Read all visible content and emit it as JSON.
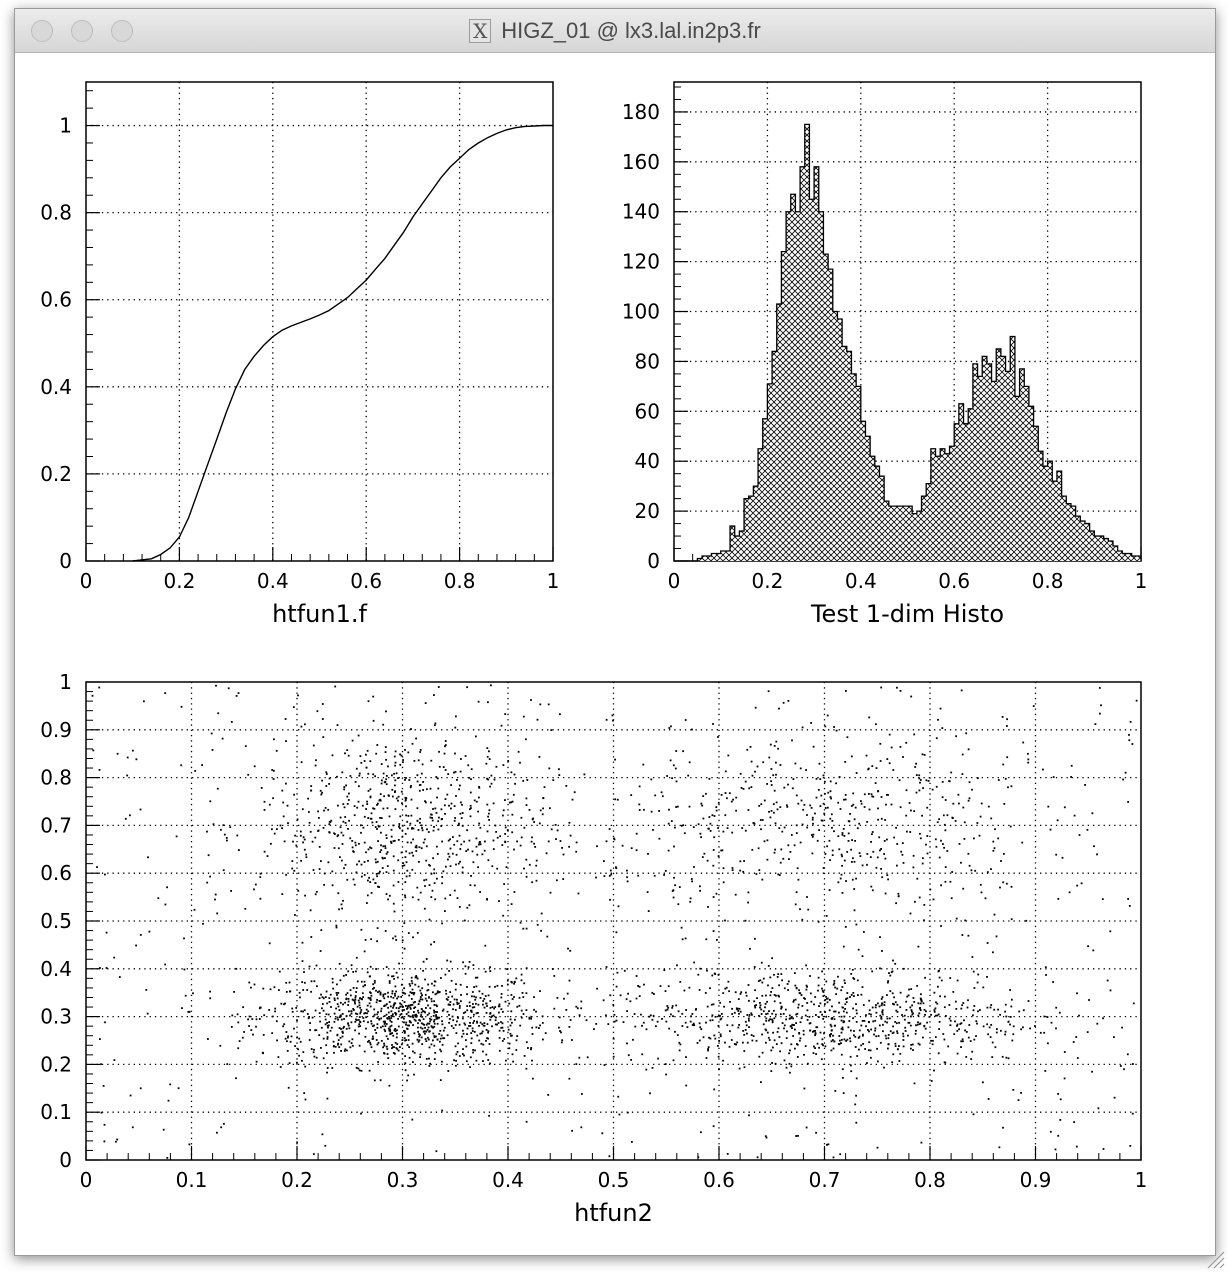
{
  "window": {
    "title": "HIGZ_01 @ lx3.lal.in2p3.fr",
    "icon": "x11-icon",
    "buttons": [
      "close-button",
      "minimize-button",
      "zoom-button"
    ]
  },
  "chart_data": [
    {
      "type": "line",
      "xlabel": "htfun1.f",
      "ylabel": "",
      "xlim": [
        0,
        1
      ],
      "ylim": [
        0,
        1.1
      ],
      "xticks": [
        "0",
        "0.2",
        "0.4",
        "0.6",
        "0.8",
        "1"
      ],
      "yticks": [
        "0",
        "0.2",
        "0.4",
        "0.6",
        "0.8",
        "1"
      ],
      "grid": true,
      "x": [
        0.1,
        0.14,
        0.16,
        0.18,
        0.2,
        0.22,
        0.24,
        0.26,
        0.28,
        0.3,
        0.32,
        0.34,
        0.36,
        0.38,
        0.4,
        0.42,
        0.44,
        0.46,
        0.48,
        0.5,
        0.52,
        0.54,
        0.56,
        0.58,
        0.6,
        0.62,
        0.64,
        0.66,
        0.68,
        0.7,
        0.72,
        0.74,
        0.76,
        0.78,
        0.8,
        0.82,
        0.84,
        0.86,
        0.88,
        0.9,
        0.92,
        0.94,
        0.96,
        0.98,
        1.0
      ],
      "y": [
        0.0,
        0.005,
        0.015,
        0.03,
        0.055,
        0.1,
        0.16,
        0.22,
        0.28,
        0.34,
        0.395,
        0.44,
        0.47,
        0.495,
        0.515,
        0.53,
        0.54,
        0.548,
        0.556,
        0.565,
        0.575,
        0.59,
        0.605,
        0.625,
        0.645,
        0.67,
        0.695,
        0.725,
        0.755,
        0.79,
        0.82,
        0.85,
        0.88,
        0.905,
        0.925,
        0.945,
        0.96,
        0.972,
        0.982,
        0.99,
        0.995,
        0.998,
        0.999,
        1.0,
        1.0
      ]
    },
    {
      "type": "bar",
      "xlabel": "Test 1-dim Histo",
      "ylabel": "",
      "xlim": [
        0,
        1
      ],
      "ylim": [
        0,
        192
      ],
      "xticks": [
        "0",
        "0.2",
        "0.4",
        "0.6",
        "0.8",
        "1"
      ],
      "yticks": [
        "0",
        "20",
        "40",
        "60",
        "80",
        "100",
        "120",
        "140",
        "160",
        "180"
      ],
      "grid": true,
      "fill": "cross-hatch",
      "bin_width": 0.01,
      "bin_start": 0,
      "values": [
        0,
        0,
        0,
        0,
        0,
        1,
        2,
        2,
        3,
        3,
        4,
        4,
        14,
        10,
        12,
        25,
        26,
        30,
        45,
        57,
        71,
        84,
        103,
        124,
        140,
        147,
        140,
        158,
        175,
        145,
        158,
        140,
        123,
        117,
        100,
        97,
        86,
        84,
        75,
        70,
        56,
        50,
        42,
        38,
        34,
        24,
        22,
        22,
        22,
        22,
        22,
        19,
        20,
        26,
        31,
        45,
        42,
        45,
        43,
        46,
        55,
        63,
        55,
        61,
        79,
        74,
        82,
        79,
        72,
        85,
        82,
        76,
        90,
        66,
        77,
        70,
        62,
        54,
        44,
        38,
        40,
        32,
        36,
        26,
        23,
        22,
        18,
        16,
        15,
        12,
        10,
        10,
        9,
        8,
        6,
        4,
        3,
        3,
        2,
        2
      ]
    },
    {
      "type": "scatter",
      "xlabel": "htfun2",
      "ylabel": "",
      "xlim": [
        0,
        1
      ],
      "ylim": [
        0,
        1
      ],
      "xticks": [
        "0",
        "0.1",
        "0.2",
        "0.3",
        "0.4",
        "0.5",
        "0.6",
        "0.7",
        "0.8",
        "0.9",
        "1"
      ],
      "yticks": [
        "0",
        "0.1",
        "0.2",
        "0.3",
        "0.4",
        "0.5",
        "0.6",
        "0.7",
        "0.8",
        "0.9",
        "1"
      ],
      "grid": true,
      "clusters": [
        {
          "x": 0.3,
          "y": 0.3,
          "sx": 0.07,
          "sy": 0.05,
          "n": 1000
        },
        {
          "x": 0.3,
          "y": 0.7,
          "sx": 0.07,
          "sy": 0.1,
          "n": 700
        },
        {
          "x": 0.7,
          "y": 0.3,
          "sx": 0.1,
          "sy": 0.05,
          "n": 800
        },
        {
          "x": 0.7,
          "y": 0.7,
          "sx": 0.1,
          "sy": 0.1,
          "n": 500
        }
      ],
      "background_points": 500
    }
  ]
}
